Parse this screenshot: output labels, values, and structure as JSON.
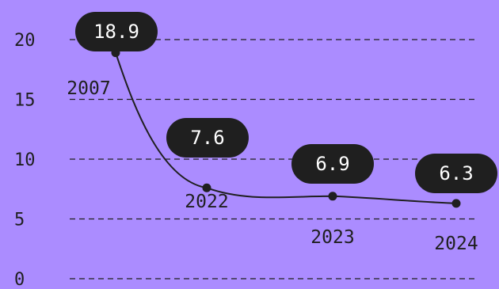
{
  "theme": {
    "background": "#ab8cff",
    "ink": "#1f1f1f",
    "label_fill": "#1f1f1f",
    "label_text": "#ffffff"
  },
  "chart_data": {
    "type": "line",
    "x": [
      "2007",
      "2022",
      "2023",
      "2024"
    ],
    "values": [
      18.9,
      7.6,
      6.9,
      6.3
    ],
    "labels": [
      "18.9",
      "7.6",
      "6.9",
      "6.3"
    ],
    "title": "",
    "xlabel": "",
    "ylabel": "",
    "ylim": [
      0,
      20
    ],
    "yticks": [
      "0",
      "5",
      "10",
      "15",
      "20"
    ],
    "grid": true,
    "legend": false
  }
}
